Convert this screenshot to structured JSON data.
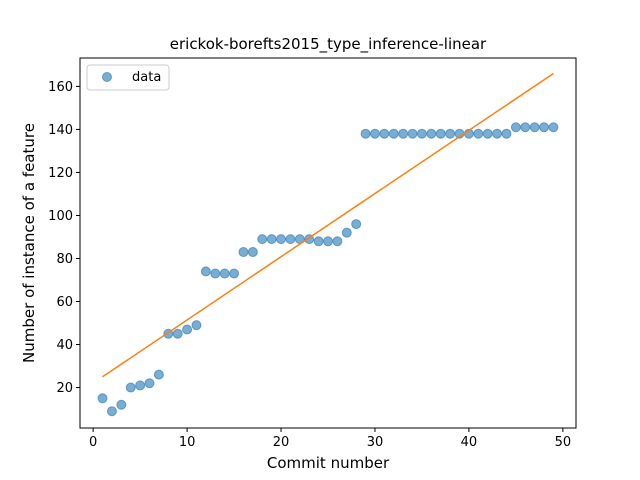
{
  "chart_data": {
    "type": "scatter",
    "title": "erickok-borefts2015_type_inference-linear",
    "xlabel": "Commit number",
    "ylabel": "Number of instance of a feature",
    "xlim": [
      -1.4,
      51.4
    ],
    "ylim": [
      1.2,
      173.2
    ],
    "xticks": [
      0,
      10,
      20,
      30,
      40,
      50
    ],
    "yticks": [
      20,
      40,
      60,
      80,
      100,
      120,
      140,
      160
    ],
    "grid": false,
    "legend_position": "top-left",
    "series": [
      {
        "name": "data",
        "kind": "scatter",
        "color": "#1f77b4",
        "x": [
          1,
          2,
          3,
          4,
          5,
          6,
          7,
          8,
          9,
          10,
          11,
          12,
          13,
          14,
          15,
          16,
          17,
          18,
          19,
          20,
          21,
          22,
          23,
          24,
          25,
          26,
          27,
          28,
          29,
          30,
          31,
          32,
          33,
          34,
          35,
          36,
          37,
          38,
          39,
          40,
          41,
          42,
          43,
          44,
          45,
          46,
          47,
          48,
          49
        ],
        "y": [
          15,
          9,
          12,
          20,
          21,
          22,
          26,
          45,
          45,
          47,
          49,
          74,
          73,
          73,
          73,
          83,
          83,
          89,
          89,
          89,
          89,
          89,
          89,
          88,
          88,
          88,
          92,
          96,
          138,
          138,
          138,
          138,
          138,
          138,
          138,
          138,
          138,
          138,
          138,
          138,
          138,
          138,
          138,
          138,
          141,
          141,
          141,
          141,
          141
        ]
      },
      {
        "kind": "line",
        "color": "#ff7f0e",
        "x": [
          1,
          49
        ],
        "y": [
          25,
          166
        ]
      }
    ]
  }
}
